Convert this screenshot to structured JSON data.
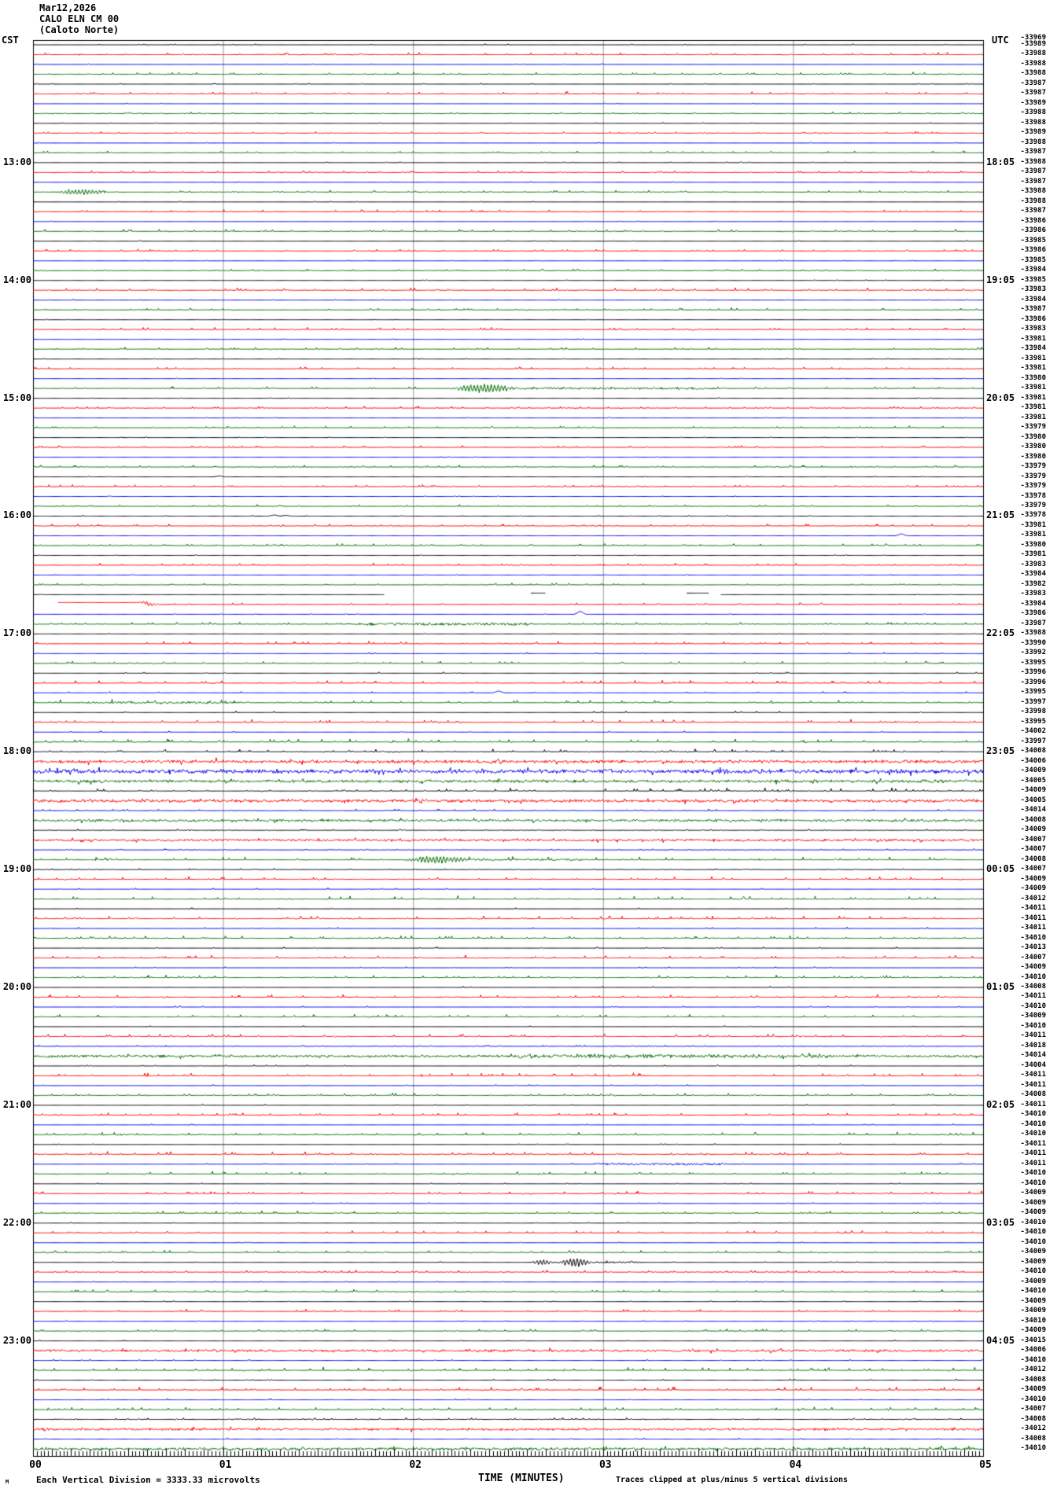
{
  "header": {
    "date": "Mar12,2026",
    "station_code": "CALO ELN CM 00",
    "station_name": "(Caloto Norte)"
  },
  "axes": {
    "left_timezone": "CST",
    "right_timezone": "UTC",
    "x_axis_label": "TIME (MINUTES)",
    "x_tick_labels": [
      "00",
      "01",
      "02",
      "03",
      "04",
      "05"
    ]
  },
  "footer": {
    "left_note": "Each Vertical Division = 3333.33 microvolts",
    "right_note": "Traces clipped at plus/minus 5 vertical divisions",
    "corner_mark": "M"
  },
  "dc_header_overlap": "-33969",
  "left_hour_labels": [
    {
      "row": 13,
      "label": "13:00"
    },
    {
      "row": 25,
      "label": "14:00"
    },
    {
      "row": 37,
      "label": "15:00"
    },
    {
      "row": 49,
      "label": "16:00"
    },
    {
      "row": 61,
      "label": "17:00"
    },
    {
      "row": 73,
      "label": "18:00"
    },
    {
      "row": 85,
      "label": "19:00"
    },
    {
      "row": 97,
      "label": "20:00"
    },
    {
      "row": 109,
      "label": "21:00"
    },
    {
      "row": 121,
      "label": "22:00"
    },
    {
      "row": 133,
      "label": "23:00"
    }
  ],
  "right_hour_labels": [
    {
      "row": 13,
      "label": "18:05"
    },
    {
      "row": 25,
      "label": "19:05"
    },
    {
      "row": 37,
      "label": "20:05"
    },
    {
      "row": 49,
      "label": "21:05"
    },
    {
      "row": 61,
      "label": "22:05"
    },
    {
      "row": 73,
      "label": "23:05"
    },
    {
      "row": 85,
      "label": "00:05"
    },
    {
      "row": 97,
      "label": "01:05"
    },
    {
      "row": 109,
      "label": "02:05"
    },
    {
      "row": 121,
      "label": "03:05"
    },
    {
      "row": 133,
      "label": "04:05"
    }
  ],
  "colors": {
    "black": "#000000",
    "red": "#fe0000",
    "blue": "#0000ee",
    "green": "#006e00",
    "grid": "#9b9b9b"
  },
  "chart_data": {
    "type": "line",
    "subtype": "helicorder",
    "title": "CALO ELN CM 00 (Caloto Norte) Mar12,2026",
    "x_range_minutes": [
      0,
      5
    ],
    "lines_per_hour": 12,
    "minutes_per_line": 5,
    "start_cst": "12:00",
    "utc_offset_hours": 5,
    "rows": [
      {
        "c": "k",
        "n": 0.2,
        "dc": "-33989"
      },
      {
        "c": "r",
        "n": 0.8,
        "dc": "-33988"
      },
      {
        "c": "b",
        "n": 0.1,
        "dc": "-33988"
      },
      {
        "c": "g",
        "n": 0.8,
        "dc": "-33988"
      },
      {
        "c": "k",
        "n": 0.15,
        "dc": "-33987"
      },
      {
        "c": "r",
        "n": 0.9,
        "dc": "-33987"
      },
      {
        "c": "b",
        "n": 0.1,
        "dc": "-33989"
      },
      {
        "c": "g",
        "n": 0.6,
        "dc": "-33988"
      },
      {
        "c": "k",
        "n": 0.15,
        "dc": "-33988"
      },
      {
        "c": "r",
        "n": 0.6,
        "dc": "-33989"
      },
      {
        "c": "b",
        "n": 0.1,
        "dc": "-33988"
      },
      {
        "c": "g",
        "n": 0.7,
        "dc": "-33987"
      },
      {
        "c": "k",
        "n": 0.15,
        "dc": "-33988"
      },
      {
        "c": "r",
        "n": 0.7,
        "dc": "-33987"
      },
      {
        "c": "b",
        "n": 0.1,
        "dc": "-33987"
      },
      {
        "c": "g",
        "n": 0.7,
        "dc": "-33988",
        "e": [
          {
            "k": "burst",
            "t0": 0.12,
            "t1": 0.4,
            "a": 3
          }
        ]
      },
      {
        "c": "k",
        "n": 0.15,
        "dc": "-33988"
      },
      {
        "c": "r",
        "n": 0.8,
        "dc": "-33987"
      },
      {
        "c": "b",
        "n": 0.1,
        "dc": "-33986"
      },
      {
        "c": "g",
        "n": 0.8,
        "dc": "-33986"
      },
      {
        "c": "k",
        "n": 0.15,
        "dc": "-33985"
      },
      {
        "c": "r",
        "n": 0.7,
        "dc": "-33986"
      },
      {
        "c": "b",
        "n": 0.1,
        "dc": "-33985"
      },
      {
        "c": "g",
        "n": 0.6,
        "dc": "-33984"
      },
      {
        "c": "k",
        "n": 0.15,
        "dc": "-33985"
      },
      {
        "c": "r",
        "n": 1.0,
        "dc": "-33983"
      },
      {
        "c": "b",
        "n": 0.15,
        "dc": "-33984"
      },
      {
        "c": "g",
        "n": 0.8,
        "dc": "-33987"
      },
      {
        "c": "k",
        "n": 0.2,
        "dc": "-33986"
      },
      {
        "c": "r",
        "n": 0.9,
        "dc": "-33983"
      },
      {
        "c": "b",
        "n": 0.1,
        "dc": "-33981"
      },
      {
        "c": "g",
        "n": 0.7,
        "dc": "-33984"
      },
      {
        "c": "k",
        "n": 0.15,
        "dc": "-33981"
      },
      {
        "c": "r",
        "n": 0.7,
        "dc": "-33981"
      },
      {
        "c": "b",
        "n": 0.1,
        "dc": "-33980"
      },
      {
        "c": "g",
        "n": 0.7,
        "dc": "-33981",
        "e": [
          {
            "k": "burst",
            "t0": 2.2,
            "t1": 2.55,
            "a": 5
          },
          {
            "k": "fuzz",
            "t0": 2.55,
            "t1": 3.6,
            "a": 1.2
          }
        ]
      },
      {
        "c": "k",
        "n": 0.15,
        "dc": "-33981"
      },
      {
        "c": "r",
        "n": 0.8,
        "dc": "-33981"
      },
      {
        "c": "b",
        "n": 0.1,
        "dc": "-33981"
      },
      {
        "c": "g",
        "n": 0.7,
        "dc": "-33979"
      },
      {
        "c": "k",
        "n": 0.15,
        "dc": "-33980"
      },
      {
        "c": "r",
        "n": 0.7,
        "dc": "-33980"
      },
      {
        "c": "b",
        "n": 0.1,
        "dc": "-33980"
      },
      {
        "c": "g",
        "n": 0.7,
        "dc": "-33979"
      },
      {
        "c": "k",
        "n": 0.15,
        "dc": "-33979",
        "e": [
          {
            "k": "spike",
            "t0": 0.98,
            "a": 1.2
          }
        ]
      },
      {
        "c": "r",
        "n": 0.7,
        "dc": "-33979"
      },
      {
        "c": "b",
        "n": 0.1,
        "dc": "-33978"
      },
      {
        "c": "g",
        "n": 0.6,
        "dc": "-33979"
      },
      {
        "c": "k",
        "n": 0.2,
        "dc": "-33978",
        "e": [
          {
            "k": "spike",
            "t0": 1.27,
            "a": 1.5
          },
          {
            "k": "spike",
            "t0": 1.33,
            "a": 1
          }
        ]
      },
      {
        "c": "r",
        "n": 0.8,
        "dc": "-33981"
      },
      {
        "c": "b",
        "n": 0.1,
        "dc": "-33981",
        "e": [
          {
            "k": "spike",
            "t0": 4.57,
            "a": 2.5
          }
        ]
      },
      {
        "c": "g",
        "n": 0.7,
        "dc": "-33980"
      },
      {
        "c": "k",
        "n": 0.15,
        "dc": "-33981"
      },
      {
        "c": "r",
        "n": 0.8,
        "dc": "-33983"
      },
      {
        "c": "b",
        "n": 0.1,
        "dc": "-33984"
      },
      {
        "c": "g",
        "n": 0.7,
        "dc": "-33982"
      },
      {
        "c": "k",
        "n": 0.1,
        "dc": "-33983",
        "e": [
          {
            "k": "gap",
            "t0": 1.85,
            "t1": 2.62
          },
          {
            "k": "dash",
            "t0": 2.62,
            "t1": 2.7,
            "a": 2
          },
          {
            "k": "gap",
            "t0": 2.7,
            "t1": 3.44
          },
          {
            "k": "dash",
            "t0": 3.44,
            "t1": 3.56,
            "a": 2
          },
          {
            "k": "gap",
            "t0": 3.56,
            "t1": 3.62
          }
        ]
      },
      {
        "c": "r",
        "n": 0.7,
        "dc": "-33984",
        "e": [
          {
            "k": "gap",
            "t0": 0,
            "t1": 0.13
          },
          {
            "k": "flat",
            "t0": 0.13,
            "t1": 0.6,
            "a": 2.5
          },
          {
            "k": "burst",
            "t0": 0.55,
            "t1": 0.66,
            "a": 2
          }
        ]
      },
      {
        "c": "b",
        "n": 0.1,
        "dc": "-33986",
        "e": [
          {
            "k": "spike",
            "t0": 2.88,
            "a": 4
          }
        ]
      },
      {
        "c": "g",
        "n": 0.8,
        "dc": "-33987",
        "e": [
          {
            "k": "fuzz",
            "t0": 1.7,
            "t1": 2.63,
            "a": 1.6
          }
        ]
      },
      {
        "c": "k",
        "n": 0.15,
        "dc": "-33988"
      },
      {
        "c": "r",
        "n": 0.9,
        "dc": "-33990"
      },
      {
        "c": "b",
        "n": 0.3,
        "dc": "-33992"
      },
      {
        "c": "g",
        "n": 0.9,
        "dc": "-33995"
      },
      {
        "c": "k",
        "n": 0.3,
        "dc": "-33996"
      },
      {
        "c": "r",
        "n": 1.0,
        "dc": "-33996"
      },
      {
        "c": "b",
        "n": 0.3,
        "dc": "-33995",
        "e": [
          {
            "k": "spike",
            "t0": 2.45,
            "a": 2.5
          }
        ]
      },
      {
        "c": "g",
        "n": 1.1,
        "dc": "-33997",
        "e": [
          {
            "k": "fuzz",
            "t0": 0.3,
            "t1": 1.1,
            "a": 1.2
          }
        ]
      },
      {
        "c": "k",
        "n": 0.35,
        "dc": "-33998"
      },
      {
        "c": "r",
        "n": 1.2,
        "dc": "-33995"
      },
      {
        "c": "b",
        "n": 0.3,
        "dc": "-34002"
      },
      {
        "c": "g",
        "n": 1.2,
        "dc": "-33997"
      },
      {
        "c": "k",
        "n": 1.1,
        "dc": "-34008"
      },
      {
        "c": "r",
        "n": 1.8,
        "dc": "-34006"
      },
      {
        "c": "b",
        "n": 2.3,
        "dc": "-34009"
      },
      {
        "c": "g",
        "n": 1.7,
        "dc": "-34005"
      },
      {
        "c": "k",
        "n": 1.2,
        "dc": "-34009"
      },
      {
        "c": "r",
        "n": 1.7,
        "dc": "-34005"
      },
      {
        "c": "b",
        "n": 0.7,
        "dc": "-34014"
      },
      {
        "c": "g",
        "n": 1.4,
        "dc": "-34008"
      },
      {
        "c": "k",
        "n": 0.5,
        "dc": "-34009"
      },
      {
        "c": "r",
        "n": 1.3,
        "dc": "-34007"
      },
      {
        "c": "b",
        "n": 0.4,
        "dc": "-34007"
      },
      {
        "c": "g",
        "n": 1.2,
        "dc": "-34008",
        "e": [
          {
            "k": "burst",
            "t0": 1.95,
            "t1": 2.3,
            "a": 4
          },
          {
            "k": "fuzz",
            "t0": 2.3,
            "t1": 2.9,
            "a": 1
          }
        ]
      },
      {
        "c": "k",
        "n": 0.4,
        "dc": "-34007"
      },
      {
        "c": "r",
        "n": 1.2,
        "dc": "-34009"
      },
      {
        "c": "b",
        "n": 0.35,
        "dc": "-34009"
      },
      {
        "c": "g",
        "n": 1.2,
        "dc": "-34012"
      },
      {
        "c": "k",
        "n": 0.3,
        "dc": "-34011"
      },
      {
        "c": "r",
        "n": 1.1,
        "dc": "-34011"
      },
      {
        "c": "b",
        "n": 0.3,
        "dc": "-34011"
      },
      {
        "c": "g",
        "n": 1.1,
        "dc": "-34010"
      },
      {
        "c": "k",
        "n": 0.3,
        "dc": "-34013"
      },
      {
        "c": "r",
        "n": 1.1,
        "dc": "-34007"
      },
      {
        "c": "b",
        "n": 0.25,
        "dc": "-34009"
      },
      {
        "c": "g",
        "n": 1.0,
        "dc": "-34010"
      },
      {
        "c": "k",
        "n": 0.3,
        "dc": "-34008"
      },
      {
        "c": "r",
        "n": 1.1,
        "dc": "-34011"
      },
      {
        "c": "b",
        "n": 0.25,
        "dc": "-34010"
      },
      {
        "c": "g",
        "n": 1.0,
        "dc": "-34009"
      },
      {
        "c": "k",
        "n": 0.25,
        "dc": "-34010"
      },
      {
        "c": "r",
        "n": 1.1,
        "dc": "-34011"
      },
      {
        "c": "b",
        "n": 0.4,
        "dc": "-34018"
      },
      {
        "c": "g",
        "n": 1.4,
        "dc": "-34014",
        "e": [
          {
            "k": "fuzz",
            "t0": 2.5,
            "t1": 4.2,
            "a": 1.3
          }
        ]
      },
      {
        "c": "k",
        "n": 0.25,
        "dc": "-34004"
      },
      {
        "c": "r",
        "n": 1.2,
        "dc": "-34011"
      },
      {
        "c": "b",
        "n": 0.25,
        "dc": "-34011"
      },
      {
        "c": "g",
        "n": 1.0,
        "dc": "-34008"
      },
      {
        "c": "k",
        "n": 0.25,
        "dc": "-34011"
      },
      {
        "c": "r",
        "n": 1.0,
        "dc": "-34010"
      },
      {
        "c": "b",
        "n": 0.2,
        "dc": "-34010"
      },
      {
        "c": "g",
        "n": 1.0,
        "dc": "-34010"
      },
      {
        "c": "k",
        "n": 0.2,
        "dc": "-34011"
      },
      {
        "c": "r",
        "n": 1.1,
        "dc": "-34011"
      },
      {
        "c": "b",
        "n": 0.25,
        "dc": "-34011",
        "e": [
          {
            "k": "fuzz",
            "t0": 2.95,
            "t1": 3.65,
            "a": 1.3
          }
        ]
      },
      {
        "c": "g",
        "n": 1.0,
        "dc": "-34010"
      },
      {
        "c": "k",
        "n": 0.2,
        "dc": "-34010"
      },
      {
        "c": "r",
        "n": 1.0,
        "dc": "-34009"
      },
      {
        "c": "b",
        "n": 0.2,
        "dc": "-34009"
      },
      {
        "c": "g",
        "n": 0.9,
        "dc": "-34009"
      },
      {
        "c": "k",
        "n": 0.2,
        "dc": "-34010"
      },
      {
        "c": "r",
        "n": 0.85,
        "dc": "-34010"
      },
      {
        "c": "b",
        "n": 0.15,
        "dc": "-34010"
      },
      {
        "c": "g",
        "n": 0.8,
        "dc": "-34009"
      },
      {
        "c": "k",
        "n": 0.2,
        "dc": "-34009",
        "e": [
          {
            "k": "burst",
            "t0": 2.62,
            "t1": 2.74,
            "a": 3
          },
          {
            "k": "burst",
            "t0": 2.76,
            "t1": 2.95,
            "a": 5
          },
          {
            "k": "fuzz",
            "t0": 2.95,
            "t1": 3.2,
            "a": 1
          }
        ]
      },
      {
        "c": "r",
        "n": 0.8,
        "dc": "-34010"
      },
      {
        "c": "b",
        "n": 0.15,
        "dc": "-34009"
      },
      {
        "c": "g",
        "n": 0.9,
        "dc": "-34010"
      },
      {
        "c": "k",
        "n": 0.2,
        "dc": "-34009"
      },
      {
        "c": "r",
        "n": 0.85,
        "dc": "-34009"
      },
      {
        "c": "b",
        "n": 0.15,
        "dc": "-34010"
      },
      {
        "c": "g",
        "n": 0.9,
        "dc": "-34009"
      },
      {
        "c": "k",
        "n": 0.25,
        "dc": "-34015"
      },
      {
        "c": "r",
        "n": 1.3,
        "dc": "-34006"
      },
      {
        "c": "b",
        "n": 0.3,
        "dc": "-34010"
      },
      {
        "c": "g",
        "n": 1.2,
        "dc": "-34012"
      },
      {
        "c": "k",
        "n": 0.3,
        "dc": "-34008"
      },
      {
        "c": "r",
        "n": 1.2,
        "dc": "-34009"
      },
      {
        "c": "b",
        "n": 0.3,
        "dc": "-34010"
      },
      {
        "c": "g",
        "n": 1.1,
        "dc": "-34007"
      },
      {
        "c": "k",
        "n": 0.7,
        "dc": "-34008"
      },
      {
        "c": "r",
        "n": 1.3,
        "dc": "-34012"
      },
      {
        "c": "b",
        "n": 0.3,
        "dc": "-34008"
      },
      {
        "c": "g",
        "n": 1.5,
        "dc": "-34010"
      }
    ]
  }
}
